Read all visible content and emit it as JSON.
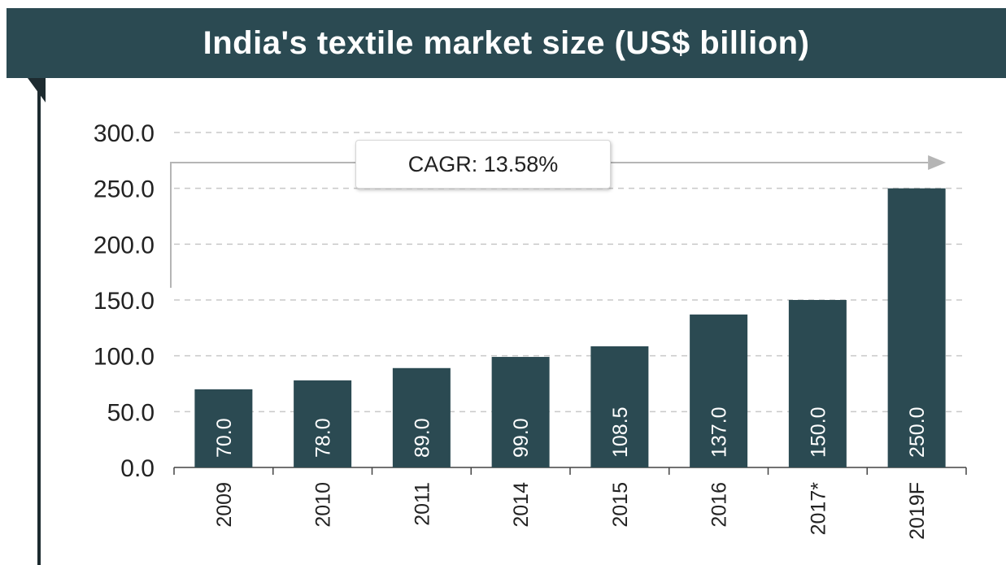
{
  "header": {
    "title": "India's textile market size (US$ billion)",
    "partial_text": "",
    "background_color": "#2b4a52",
    "title_color": "#ffffff"
  },
  "annotation": {
    "cagr_label": "CAGR: 13.58%"
  },
  "chart_data": {
    "type": "bar",
    "title": "India's textile market size (US$ billion)",
    "categories": [
      "2009",
      "2010",
      "2011",
      "2014",
      "2015",
      "2016",
      "2017*",
      "2019F"
    ],
    "values": [
      70.0,
      78.0,
      89.0,
      99.0,
      108.5,
      137.0,
      150.0,
      250.0
    ],
    "value_labels": [
      "70.0",
      "78.0",
      "89.0",
      "99.0",
      "108.5",
      "137.0",
      "150.0",
      "250.0"
    ],
    "yticks": [
      "0.0",
      "50.0",
      "100.0",
      "150.0",
      "200.0",
      "250.0",
      "300.0"
    ],
    "ylim": [
      0,
      300
    ],
    "xlabel": "",
    "ylabel": "",
    "grid": "dashed horizontal",
    "bar_color": "#2b4a52"
  }
}
